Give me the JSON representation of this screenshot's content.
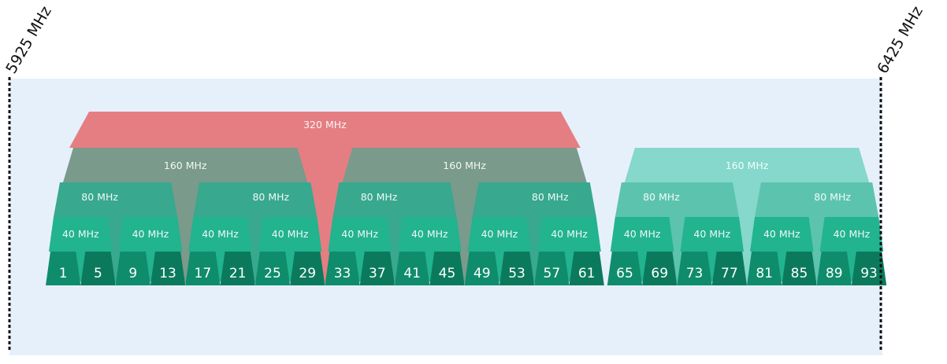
{
  "colors": {
    "background_panel": "#e6f0fb",
    "band_320": "#e57e82",
    "band_160_a": "#7a9a8c",
    "band_80_a": "#38a88e",
    "band_40": "#22b38f",
    "channel_a": "#0f8c6b",
    "channel_a_dark": "#0b7a5c",
    "band_160_b": "#7fd6c8",
    "band_80_b": "#5cc4ae",
    "edge_line": "#111111"
  },
  "edges": {
    "low": "5925 MHz",
    "high": "6425 MHz"
  },
  "channels": [
    "1",
    "5",
    "9",
    "13",
    "17",
    "21",
    "25",
    "29",
    "33",
    "37",
    "41",
    "45",
    "49",
    "53",
    "57",
    "61",
    "65",
    "69",
    "73",
    "77",
    "81",
    "85",
    "89",
    "93"
  ],
  "bands": {
    "w320": {
      "label": "320 MHz",
      "groups": [
        {
          "from": 0,
          "to": 15
        }
      ]
    },
    "w160": {
      "label": "160 MHz",
      "groups": [
        {
          "from": 0,
          "to": 7
        },
        {
          "from": 8,
          "to": 15
        },
        {
          "from": 16,
          "to": 23
        }
      ]
    },
    "w80": {
      "label": "80 MHz",
      "groups": [
        {
          "from": 0,
          "to": 3
        },
        {
          "from": 4,
          "to": 7
        },
        {
          "from": 8,
          "to": 11
        },
        {
          "from": 12,
          "to": 15
        },
        {
          "from": 16,
          "to": 19
        },
        {
          "from": 20,
          "to": 23
        }
      ]
    },
    "w40": {
      "label": "40 MHz",
      "groups": [
        {
          "from": 0,
          "to": 1
        },
        {
          "from": 2,
          "to": 3
        },
        {
          "from": 4,
          "to": 5
        },
        {
          "from": 6,
          "to": 7
        },
        {
          "from": 8,
          "to": 9
        },
        {
          "from": 10,
          "to": 11
        },
        {
          "from": 12,
          "to": 13
        },
        {
          "from": 14,
          "to": 15
        },
        {
          "from": 16,
          "to": 17
        },
        {
          "from": 18,
          "to": 19
        },
        {
          "from": 20,
          "to": 21
        },
        {
          "from": 22,
          "to": 23
        }
      ]
    }
  }
}
